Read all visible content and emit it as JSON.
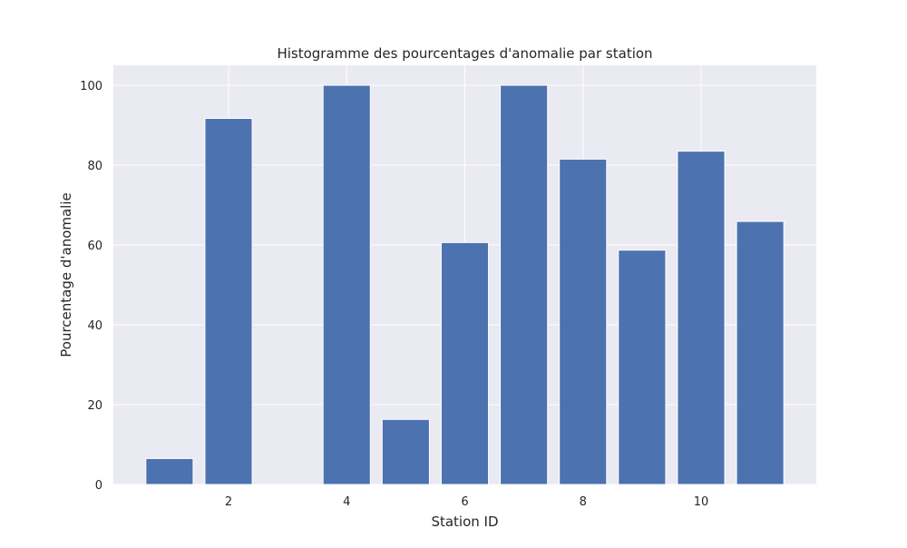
{
  "chart_data": {
    "type": "bar",
    "title": "Histogramme des pourcentages d'anomalie par station",
    "xlabel": "Station ID",
    "ylabel": "Pourcentage d'anomalie",
    "x": [
      1,
      2,
      3,
      4,
      5,
      6,
      7,
      8,
      9,
      10,
      11
    ],
    "values": [
      6.5,
      91.7,
      0,
      100,
      16.3,
      60.6,
      100,
      81.5,
      58.7,
      83.5,
      65.9
    ],
    "xlim": [
      0.05,
      11.95
    ],
    "ylim": [
      0,
      105
    ],
    "xticks": [
      2,
      4,
      6,
      8,
      10
    ],
    "yticks": [
      0,
      20,
      40,
      60,
      80,
      100
    ],
    "bar_color": "#4c72b0",
    "background_color": "#eaeaf2",
    "grid": true
  }
}
